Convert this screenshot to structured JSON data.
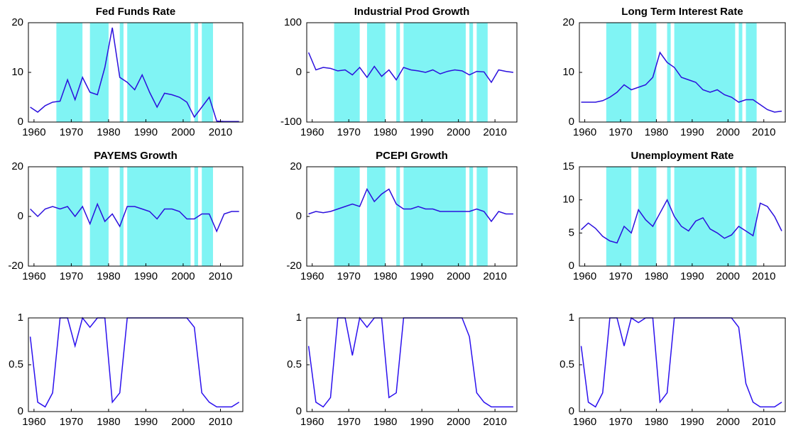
{
  "chart_data": [
    {
      "type": "line",
      "title": "Fed Funds Rate",
      "color": "#2b10dd",
      "shade_color": "#80f4f4",
      "x": [
        1959,
        1961,
        1963,
        1965,
        1967,
        1969,
        1971,
        1973,
        1975,
        1977,
        1979,
        1981,
        1983,
        1985,
        1987,
        1989,
        1991,
        1993,
        1995,
        1997,
        1999,
        2001,
        2003,
        2005,
        2007,
        2009,
        2011,
        2013,
        2015
      ],
      "values": [
        3,
        2,
        3.3,
        4,
        4.2,
        8.5,
        4.5,
        9,
        6,
        5.5,
        11,
        19,
        9,
        8,
        6.5,
        9.5,
        6,
        3,
        5.8,
        5.5,
        5,
        4,
        1,
        3,
        5,
        0.2,
        0.1,
        0.1,
        0.1
      ],
      "shaded_regions": [
        [
          1966,
          1973
        ],
        [
          1975,
          1980
        ],
        [
          1983,
          1984
        ],
        [
          1985,
          2002
        ],
        [
          2003,
          2004
        ],
        [
          2005,
          2008
        ]
      ],
      "xlim": [
        1958.5,
        2016
      ],
      "xticks": [
        1960,
        1970,
        1980,
        1990,
        2000,
        2010
      ],
      "ylim": [
        0,
        20
      ],
      "yticks": [
        0,
        10,
        20
      ]
    },
    {
      "type": "line",
      "title": "Industrial Prod Growth",
      "color": "#2b10dd",
      "shade_color": "#80f4f4",
      "x": [
        1959,
        1961,
        1963,
        1965,
        1967,
        1969,
        1971,
        1973,
        1975,
        1977,
        1979,
        1981,
        1983,
        1985,
        1987,
        1989,
        1991,
        1993,
        1995,
        1997,
        1999,
        2001,
        2003,
        2005,
        2007,
        2009,
        2011,
        2013,
        2015
      ],
      "values": [
        40,
        5,
        10,
        8,
        3,
        5,
        -5,
        10,
        -10,
        12,
        -8,
        5,
        -15,
        10,
        5,
        3,
        0,
        5,
        -3,
        2,
        5,
        3,
        -5,
        2,
        1,
        -20,
        5,
        2,
        0
      ],
      "shaded_regions": [
        [
          1966,
          1973
        ],
        [
          1975,
          1980
        ],
        [
          1983,
          1984
        ],
        [
          1985,
          2002
        ],
        [
          2003,
          2004
        ],
        [
          2005,
          2008
        ]
      ],
      "xlim": [
        1958.5,
        2016
      ],
      "xticks": [
        1960,
        1970,
        1980,
        1990,
        2000,
        2010
      ],
      "ylim": [
        -100,
        100
      ],
      "yticks": [
        -100,
        0,
        100
      ]
    },
    {
      "type": "line",
      "title": "Long Term Interest Rate",
      "color": "#2b10dd",
      "shade_color": "#80f4f4",
      "x": [
        1959,
        1961,
        1963,
        1965,
        1967,
        1969,
        1971,
        1973,
        1975,
        1977,
        1979,
        1981,
        1983,
        1985,
        1987,
        1989,
        1991,
        1993,
        1995,
        1997,
        1999,
        2001,
        2003,
        2005,
        2007,
        2009,
        2011,
        2013,
        2015
      ],
      "values": [
        4,
        4,
        4,
        4.3,
        5,
        6,
        7.5,
        6.5,
        7,
        7.5,
        9,
        14,
        12,
        11,
        9,
        8.5,
        8,
        6.5,
        6,
        6.5,
        5.5,
        5,
        4,
        4.5,
        4.5,
        3.5,
        2.5,
        2,
        2.2
      ],
      "shaded_regions": [
        [
          1966,
          1973
        ],
        [
          1975,
          1980
        ],
        [
          1983,
          1984
        ],
        [
          1985,
          2002
        ],
        [
          2003,
          2004
        ],
        [
          2005,
          2008
        ]
      ],
      "xlim": [
        1958.5,
        2016
      ],
      "xticks": [
        1960,
        1970,
        1980,
        1990,
        2000,
        2010
      ],
      "ylim": [
        0,
        20
      ],
      "yticks": [
        0,
        10,
        20
      ]
    },
    {
      "type": "line",
      "title": "PAYEMS Growth",
      "color": "#2b10dd",
      "shade_color": "#80f4f4",
      "x": [
        1959,
        1961,
        1963,
        1965,
        1967,
        1969,
        1971,
        1973,
        1975,
        1977,
        1979,
        1981,
        1983,
        1985,
        1987,
        1989,
        1991,
        1993,
        1995,
        1997,
        1999,
        2001,
        2003,
        2005,
        2007,
        2009,
        2011,
        2013,
        2015
      ],
      "values": [
        3,
        0,
        3,
        4,
        3,
        4,
        0,
        4,
        -3,
        5,
        -2,
        1,
        -4,
        4,
        4,
        3,
        2,
        -1,
        3,
        3,
        2,
        -1,
        -1,
        1,
        1,
        -6,
        1,
        2,
        2
      ],
      "shaded_regions": [
        [
          1966,
          1973
        ],
        [
          1975,
          1980
        ],
        [
          1983,
          1984
        ],
        [
          1985,
          2002
        ],
        [
          2003,
          2004
        ],
        [
          2005,
          2008
        ]
      ],
      "xlim": [
        1958.5,
        2016
      ],
      "xticks": [
        1960,
        1970,
        1980,
        1990,
        2000,
        2010
      ],
      "ylim": [
        -20,
        20
      ],
      "yticks": [
        -20,
        0,
        20
      ]
    },
    {
      "type": "line",
      "title": "PCEPI Growth",
      "color": "#2b10dd",
      "shade_color": "#80f4f4",
      "x": [
        1959,
        1961,
        1963,
        1965,
        1967,
        1969,
        1971,
        1973,
        1975,
        1977,
        1979,
        1981,
        1983,
        1985,
        1987,
        1989,
        1991,
        1993,
        1995,
        1997,
        1999,
        2001,
        2003,
        2005,
        2007,
        2009,
        2011,
        2013,
        2015
      ],
      "values": [
        1,
        2,
        1.5,
        2,
        3,
        4,
        5,
        4,
        11,
        6,
        9,
        11,
        5,
        3,
        3,
        4,
        3,
        3,
        2,
        2,
        2,
        2,
        2,
        3,
        2,
        -2,
        2,
        1,
        1
      ],
      "shaded_regions": [
        [
          1966,
          1973
        ],
        [
          1975,
          1980
        ],
        [
          1983,
          1984
        ],
        [
          1985,
          2002
        ],
        [
          2003,
          2004
        ],
        [
          2005,
          2008
        ]
      ],
      "xlim": [
        1958.5,
        2016
      ],
      "xticks": [
        1960,
        1970,
        1980,
        1990,
        2000,
        2010
      ],
      "ylim": [
        -20,
        20
      ],
      "yticks": [
        -20,
        0,
        20
      ]
    },
    {
      "type": "line",
      "title": "Unemployment Rate",
      "color": "#2b10dd",
      "shade_color": "#80f4f4",
      "x": [
        1959,
        1961,
        1963,
        1965,
        1967,
        1969,
        1971,
        1973,
        1975,
        1977,
        1979,
        1981,
        1983,
        1985,
        1987,
        1989,
        1991,
        1993,
        1995,
        1997,
        1999,
        2001,
        2003,
        2005,
        2007,
        2009,
        2011,
        2013,
        2015
      ],
      "values": [
        5.5,
        6.5,
        5.7,
        4.5,
        3.8,
        3.5,
        6,
        5,
        8.5,
        7,
        6,
        8,
        10,
        7.5,
        6,
        5.3,
        6.8,
        7.3,
        5.6,
        5,
        4.2,
        4.7,
        6,
        5.3,
        4.6,
        9.5,
        9,
        7.5,
        5.3
      ],
      "shaded_regions": [
        [
          1966,
          1973
        ],
        [
          1975,
          1980
        ],
        [
          1983,
          1984
        ],
        [
          1985,
          2002
        ],
        [
          2003,
          2004
        ],
        [
          2005,
          2008
        ]
      ],
      "xlim": [
        1958.5,
        2016
      ],
      "xticks": [
        1960,
        1970,
        1980,
        1990,
        2000,
        2010
      ],
      "ylim": [
        0,
        15
      ],
      "yticks": [
        0,
        5,
        10,
        15
      ]
    },
    {
      "type": "line",
      "color": "#2b10ee",
      "x": [
        1959,
        1961,
        1963,
        1965,
        1967,
        1969,
        1971,
        1973,
        1975,
        1977,
        1979,
        1981,
        1983,
        1985,
        1987,
        1989,
        1991,
        1993,
        1995,
        1997,
        1999,
        2001,
        2003,
        2005,
        2007,
        2009,
        2011,
        2013,
        2015
      ],
      "values": [
        0.8,
        0.1,
        0.05,
        0.2,
        1,
        1,
        0.7,
        1,
        0.9,
        1,
        1,
        0.1,
        0.2,
        1,
        1,
        1,
        1,
        1,
        1,
        1,
        1,
        1,
        0.9,
        0.2,
        0.1,
        0.05,
        0.05,
        0.05,
        0.1
      ],
      "xlim": [
        1958.5,
        2016
      ],
      "xticks": [
        1960,
        1970,
        1980,
        1990,
        2000,
        2010
      ],
      "ylim": [
        0,
        1
      ],
      "yticks": [
        0,
        0.5,
        1
      ]
    },
    {
      "type": "line",
      "color": "#2b10ee",
      "x": [
        1959,
        1961,
        1963,
        1965,
        1967,
        1969,
        1971,
        1973,
        1975,
        1977,
        1979,
        1981,
        1983,
        1985,
        1987,
        1989,
        1991,
        1993,
        1995,
        1997,
        1999,
        2001,
        2003,
        2005,
        2007,
        2009,
        2011,
        2013,
        2015
      ],
      "values": [
        0.7,
        0.1,
        0.05,
        0.15,
        1,
        1,
        0.6,
        1,
        0.9,
        1,
        1,
        0.15,
        0.2,
        1,
        1,
        1,
        1,
        1,
        1,
        1,
        1,
        1,
        0.8,
        0.2,
        0.1,
        0.05,
        0.05,
        0.05,
        0.05
      ],
      "xlim": [
        1958.5,
        2016
      ],
      "xticks": [
        1960,
        1970,
        1980,
        1990,
        2000,
        2010
      ],
      "ylim": [
        0,
        1
      ],
      "yticks": [
        0,
        0.5,
        1
      ]
    },
    {
      "type": "line",
      "color": "#2b10ee",
      "x": [
        1959,
        1961,
        1963,
        1965,
        1967,
        1969,
        1971,
        1973,
        1975,
        1977,
        1979,
        1981,
        1983,
        1985,
        1987,
        1989,
        1991,
        1993,
        1995,
        1997,
        1999,
        2001,
        2003,
        2005,
        2007,
        2009,
        2011,
        2013,
        2015
      ],
      "values": [
        0.7,
        0.1,
        0.05,
        0.2,
        1,
        1,
        0.7,
        1,
        0.95,
        1,
        1,
        0.1,
        0.2,
        1,
        1,
        1,
        1,
        1,
        1,
        1,
        1,
        1,
        0.9,
        0.3,
        0.1,
        0.05,
        0.05,
        0.05,
        0.1
      ],
      "xlim": [
        1958.5,
        2016
      ],
      "xticks": [
        1960,
        1970,
        1980,
        1990,
        2000,
        2010
      ],
      "ylim": [
        0,
        1
      ],
      "yticks": [
        0,
        0.5,
        1
      ]
    }
  ]
}
